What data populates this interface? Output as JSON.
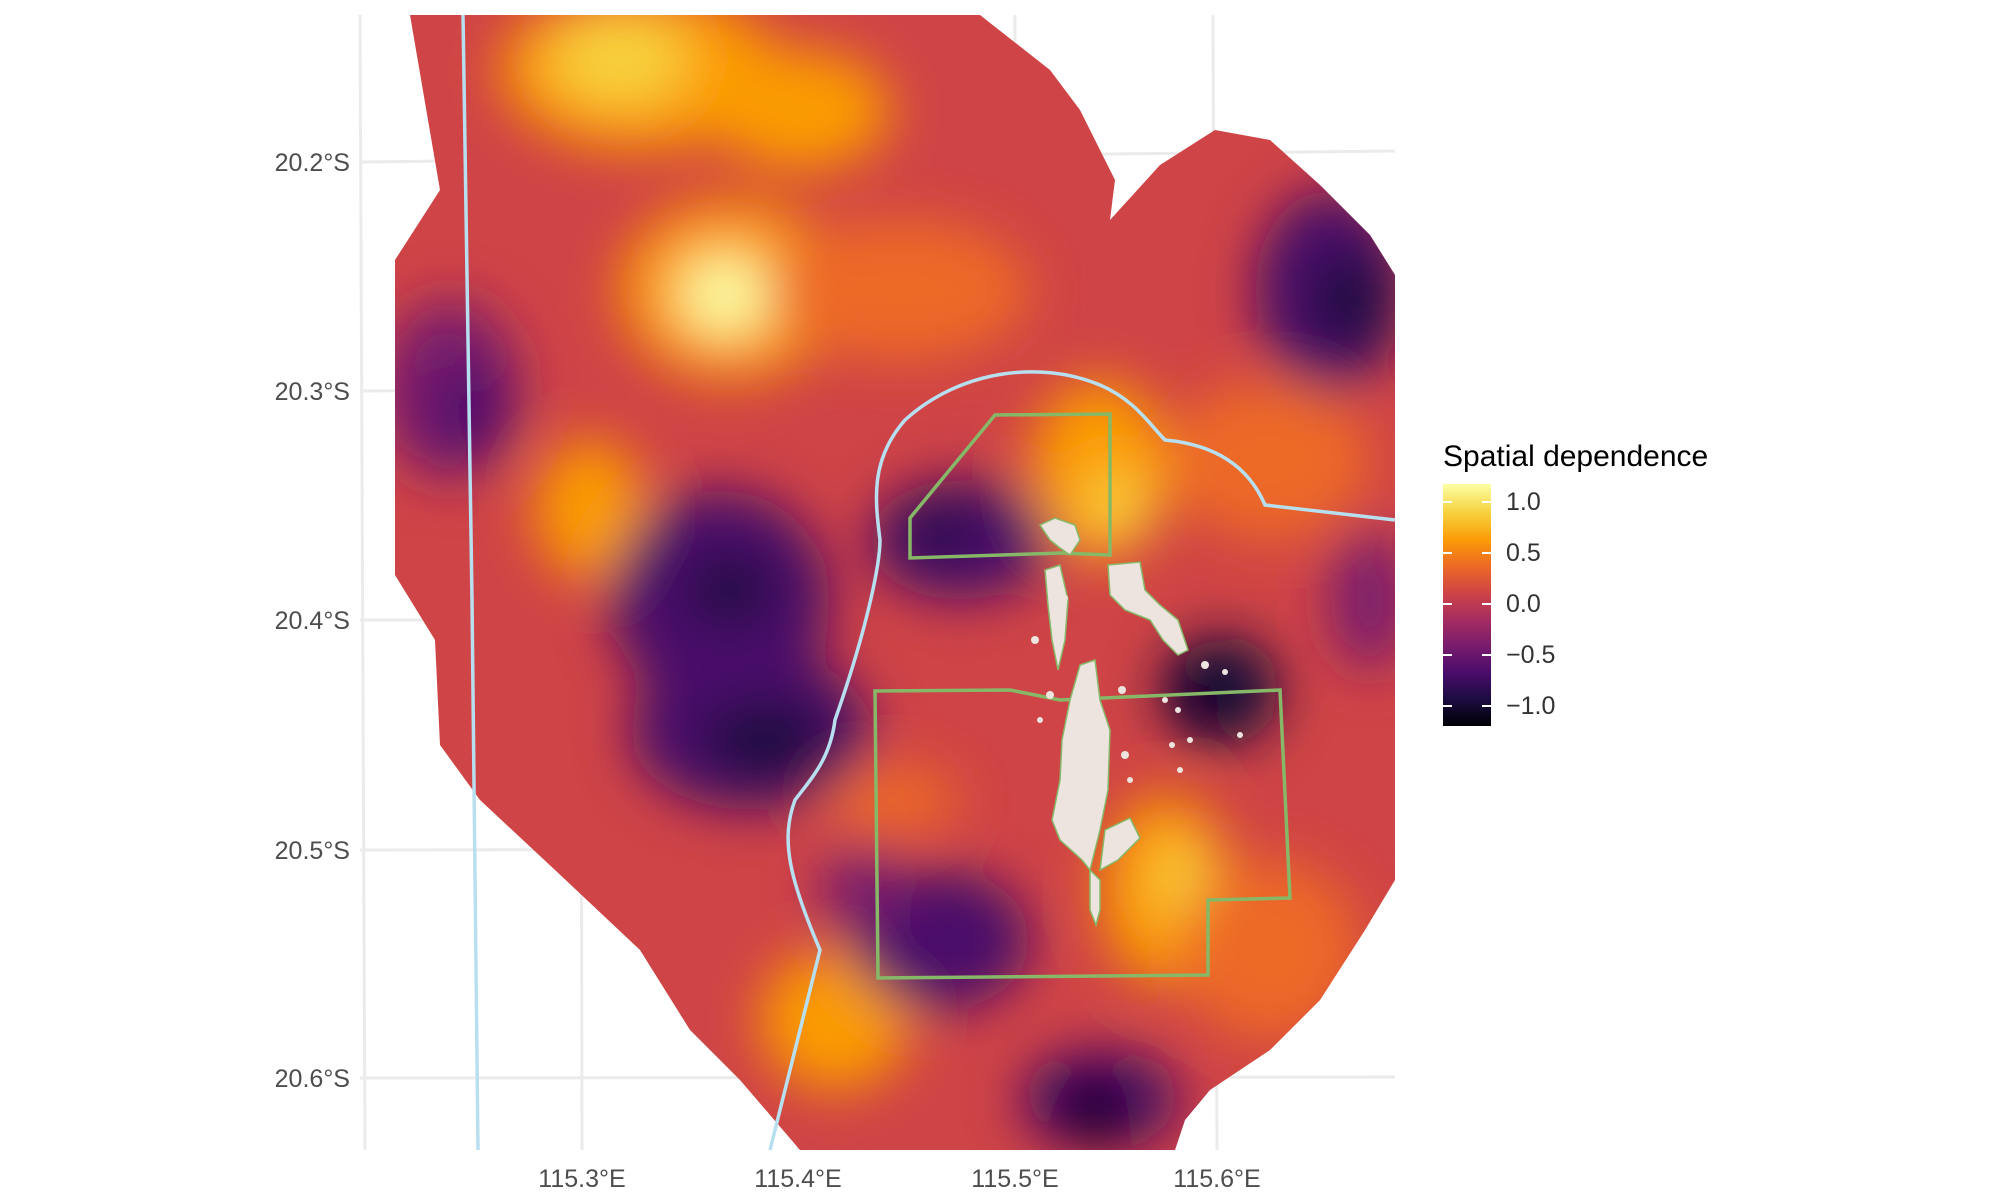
{
  "map": {
    "x_axis": {
      "tick_labels": [
        "115.3°E",
        "115.4°E",
        "115.5°E",
        "115.6°E"
      ],
      "values": [
        115.3,
        115.4,
        115.5,
        115.6
      ],
      "range": [
        115.2,
        115.68
      ]
    },
    "y_axis": {
      "tick_labels": [
        "20.2°S",
        "20.3°S",
        "20.4°S",
        "20.5°S",
        "20.6°S"
      ],
      "values": [
        -20.2,
        -20.3,
        -20.4,
        -20.5,
        -20.6
      ],
      "range": [
        -20.66,
        -20.14
      ]
    },
    "fill_variable": "Spatial dependence",
    "colors": {
      "panel_grid": "#ebebeb",
      "boundary_line": "#b8dff0",
      "protected_zone": "#86b868",
      "land": "#ede4df"
    }
  },
  "legend": {
    "title": "Spatial dependence",
    "ticks": [
      "1.0",
      "0.5",
      "0.0",
      "−0.5",
      "−1.0"
    ],
    "tick_values": [
      1.0,
      0.5,
      0.0,
      -0.5,
      -1.0
    ],
    "range": [
      -1.15,
      1.2
    ],
    "palette": "inferno",
    "gradient_stops": [
      "#000004",
      "#1b0c41",
      "#4a0c6b",
      "#781c6d",
      "#a52c60",
      "#cf4446",
      "#ed6925",
      "#fb9b06",
      "#f7d13d",
      "#fcffa4"
    ]
  }
}
